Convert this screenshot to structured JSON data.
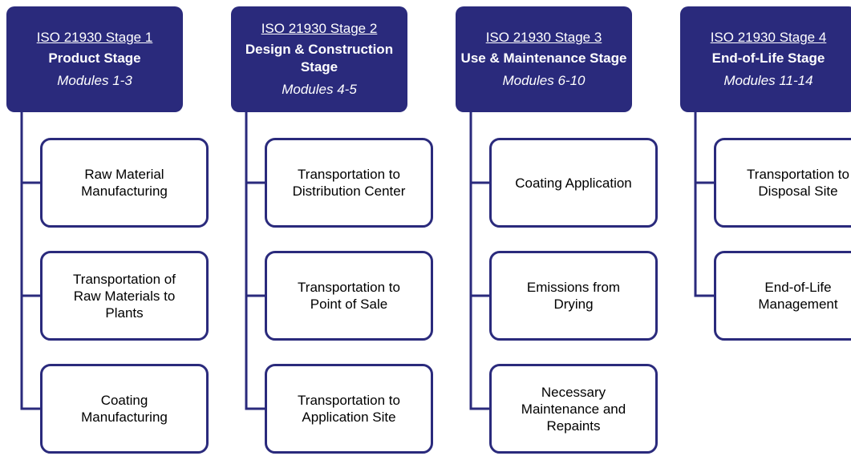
{
  "stages": [
    {
      "label": "ISO 21930 Stage 1",
      "name": "Product Stage",
      "modules": "Modules 1-3",
      "items": [
        "Raw Material Manufacturing",
        "Transportation of Raw Materials to Plants",
        "Coating Manufacturing"
      ]
    },
    {
      "label": "ISO 21930 Stage 2",
      "name": "Design & Construction Stage",
      "modules": "Modules 4-5",
      "items": [
        "Transportation to Distribution Center",
        "Transportation to Point of Sale",
        "Transportation to Application Site"
      ]
    },
    {
      "label": "ISO 21930 Stage 3",
      "name": "Use & Maintenance Stage",
      "modules": "Modules 6-10",
      "items": [
        "Coating Application",
        "Emissions from Drying",
        "Necessary Maintenance and Repaints"
      ]
    },
    {
      "label": "ISO 21930 Stage 4",
      "name": "End-of-Life Stage",
      "modules": "Modules 11-14",
      "items": [
        "Transportation to Disposal Site",
        "End-of-Life Management"
      ]
    }
  ]
}
